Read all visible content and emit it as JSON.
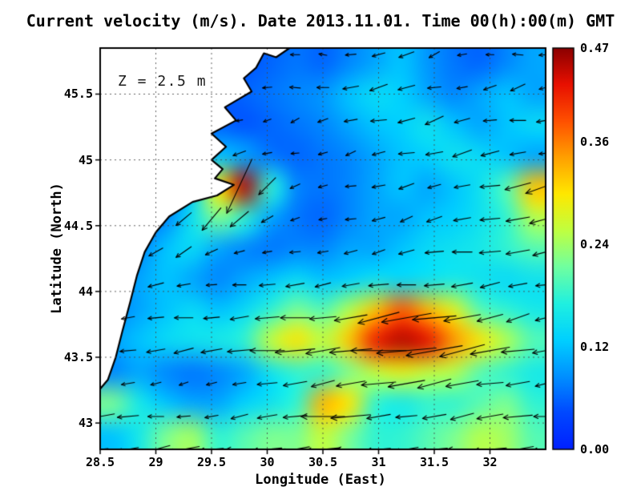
{
  "figure": {
    "title": "Current velocity (m/s). Date 2013.11.01. Time 00(h):00(m) GMT",
    "xlabel": "Longitude (East)",
    "ylabel": "Latitude (North)",
    "annotation": "Z = 2.5 m",
    "date": "2013.11.01",
    "time": "00(h):00(m) GMT",
    "units": "m/s",
    "depth_m": 2.5,
    "background": "#ffffff"
  },
  "chart_data": {
    "type": "heatmap",
    "subtype": "velocity-magnitude-with-quiver-arrows",
    "title": "Current velocity (m/s). Date 2013.11.01. Time 00(h):00(m) GMT",
    "xlabel": "Longitude (East)",
    "ylabel": "Latitude (North)",
    "depth_annotation": "Z = 2.5 m",
    "x_range": [
      28.5,
      32.5
    ],
    "y_range": [
      42.8,
      45.85
    ],
    "x_ticks": [
      28.5,
      29,
      29.5,
      30,
      30.5,
      31,
      31.5,
      32
    ],
    "x_tick_labels": [
      "28.5",
      "29",
      "29.5",
      "30",
      "30.5",
      "31",
      "31.5",
      "32"
    ],
    "y_ticks": [
      43,
      43.5,
      44,
      44.5,
      45,
      45.5
    ],
    "y_tick_labels": [
      "43",
      "43.5",
      "44",
      "44.5",
      "45",
      "45.5"
    ],
    "grid_on": true,
    "land_color": "#ffffff",
    "coast_color": "#000000",
    "arrow_color": "#000000",
    "colorbar": {
      "min": 0.0,
      "max": 0.47,
      "tick_values": [
        0.47,
        0.36,
        0.24,
        0.12,
        0.0
      ],
      "tick_labels": [
        "0.47",
        "0.36",
        "0.24",
        "0.12",
        "0.00"
      ],
      "colormap_stops": [
        "#0020ff",
        "#0048ff",
        "#0090ff",
        "#00d0ff",
        "#20f0e0",
        "#70ffa0",
        "#c0ff40",
        "#ffe800",
        "#ffa000",
        "#ff5000",
        "#e81000",
        "#8b0000"
      ]
    },
    "lon": [
      28.5,
      28.75,
      29.0,
      29.25,
      29.5,
      29.75,
      30.0,
      30.25,
      30.5,
      30.75,
      31.0,
      31.25,
      31.5,
      31.75,
      32.0,
      32.25,
      32.5
    ],
    "lat": [
      45.8,
      45.55,
      45.3,
      45.05,
      44.8,
      44.55,
      44.3,
      44.05,
      43.8,
      43.55,
      43.3,
      43.05,
      42.8
    ],
    "magnitude": [
      [
        0.05,
        0.05,
        0.04,
        0.05,
        0.06,
        0.05,
        0.06,
        0.07,
        0.06,
        0.08,
        0.1,
        0.12,
        0.09,
        0.07,
        0.06,
        0.08,
        0.1
      ],
      [
        0.05,
        0.04,
        0.05,
        0.06,
        0.05,
        0.06,
        0.07,
        0.08,
        0.09,
        0.12,
        0.14,
        0.13,
        0.1,
        0.08,
        0.1,
        0.12,
        0.1
      ],
      [
        0.04,
        0.05,
        0.06,
        0.07,
        0.06,
        0.05,
        0.06,
        0.07,
        0.08,
        0.1,
        0.12,
        0.13,
        0.15,
        0.12,
        0.1,
        0.12,
        0.14
      ],
      [
        0.05,
        0.06,
        0.07,
        0.08,
        0.12,
        0.1,
        0.07,
        0.06,
        0.07,
        0.08,
        0.1,
        0.12,
        0.13,
        0.15,
        0.14,
        0.12,
        0.1
      ],
      [
        0.05,
        0.05,
        0.06,
        0.12,
        0.3,
        0.45,
        0.18,
        0.08,
        0.07,
        0.08,
        0.1,
        0.12,
        0.1,
        0.12,
        0.15,
        0.2,
        0.32
      ],
      [
        0.05,
        0.06,
        0.08,
        0.15,
        0.22,
        0.18,
        0.1,
        0.07,
        0.06,
        0.08,
        0.1,
        0.1,
        0.12,
        0.13,
        0.15,
        0.18,
        0.25
      ],
      [
        0.06,
        0.08,
        0.12,
        0.14,
        0.1,
        0.08,
        0.07,
        0.08,
        0.08,
        0.1,
        0.1,
        0.12,
        0.14,
        0.15,
        0.16,
        0.18,
        0.2
      ],
      [
        0.08,
        0.1,
        0.12,
        0.1,
        0.08,
        0.1,
        0.12,
        0.14,
        0.12,
        0.13,
        0.15,
        0.14,
        0.15,
        0.16,
        0.15,
        0.14,
        0.15
      ],
      [
        0.08,
        0.1,
        0.12,
        0.14,
        0.12,
        0.14,
        0.18,
        0.22,
        0.2,
        0.25,
        0.32,
        0.38,
        0.33,
        0.28,
        0.2,
        0.18,
        0.16
      ],
      [
        0.1,
        0.12,
        0.14,
        0.15,
        0.16,
        0.18,
        0.26,
        0.3,
        0.26,
        0.32,
        0.42,
        0.45,
        0.43,
        0.35,
        0.3,
        0.25,
        0.2
      ],
      [
        0.08,
        0.1,
        0.08,
        0.07,
        0.08,
        0.1,
        0.15,
        0.18,
        0.18,
        0.22,
        0.26,
        0.28,
        0.26,
        0.25,
        0.2,
        0.18,
        0.16
      ],
      [
        0.22,
        0.16,
        0.12,
        0.1,
        0.1,
        0.13,
        0.15,
        0.18,
        0.33,
        0.3,
        0.18,
        0.16,
        0.18,
        0.18,
        0.2,
        0.22,
        0.18
      ],
      [
        0.12,
        0.16,
        0.22,
        0.24,
        0.18,
        0.2,
        0.22,
        0.22,
        0.26,
        0.22,
        0.18,
        0.18,
        0.2,
        0.22,
        0.25,
        0.24,
        0.2
      ]
    ],
    "direction_deg": [
      [
        200,
        190,
        185,
        195,
        205,
        210,
        190,
        180,
        170,
        185,
        195,
        200,
        210,
        190,
        180,
        175,
        185
      ],
      [
        195,
        185,
        190,
        200,
        210,
        195,
        185,
        175,
        180,
        190,
        200,
        195,
        185,
        190,
        200,
        205,
        195
      ],
      [
        190,
        200,
        195,
        185,
        180,
        190,
        200,
        210,
        200,
        190,
        185,
        195,
        205,
        195,
        185,
        180,
        190
      ],
      [
        185,
        190,
        200,
        210,
        220,
        200,
        190,
        185,
        195,
        205,
        195,
        185,
        190,
        200,
        195,
        190,
        185
      ],
      [
        180,
        185,
        190,
        220,
        235,
        245,
        225,
        205,
        195,
        185,
        190,
        200,
        195,
        190,
        185,
        195,
        200
      ],
      [
        185,
        190,
        200,
        220,
        230,
        220,
        210,
        200,
        190,
        185,
        195,
        205,
        200,
        190,
        185,
        190,
        195
      ],
      [
        190,
        195,
        210,
        215,
        205,
        195,
        190,
        185,
        190,
        195,
        200,
        195,
        185,
        180,
        185,
        190,
        195
      ],
      [
        195,
        200,
        195,
        190,
        185,
        180,
        185,
        190,
        195,
        190,
        185,
        180,
        185,
        190,
        195,
        190,
        185
      ],
      [
        195,
        190,
        185,
        180,
        185,
        190,
        185,
        180,
        185,
        190,
        195,
        190,
        185,
        190,
        195,
        200,
        195
      ],
      [
        190,
        185,
        190,
        195,
        190,
        185,
        180,
        185,
        190,
        185,
        180,
        185,
        190,
        195,
        190,
        185,
        190
      ],
      [
        185,
        190,
        195,
        200,
        195,
        190,
        185,
        190,
        195,
        190,
        185,
        190,
        195,
        190,
        185,
        190,
        195
      ],
      [
        190,
        185,
        180,
        185,
        190,
        195,
        190,
        185,
        180,
        185,
        190,
        185,
        190,
        195,
        190,
        185,
        180
      ],
      [
        185,
        190,
        195,
        190,
        185,
        180,
        185,
        190,
        185,
        180,
        185,
        190,
        185,
        180,
        185,
        190,
        185
      ]
    ],
    "coastline": [
      [
        28.5,
        45.85
      ],
      [
        30.2,
        45.85
      ],
      [
        30.08,
        45.78
      ],
      [
        29.97,
        45.81
      ],
      [
        29.9,
        45.7
      ],
      [
        29.79,
        45.62
      ],
      [
        29.86,
        45.52
      ],
      [
        29.62,
        45.4
      ],
      [
        29.72,
        45.3
      ],
      [
        29.5,
        45.2
      ],
      [
        29.63,
        45.1
      ],
      [
        29.5,
        45.0
      ],
      [
        29.6,
        44.93
      ],
      [
        29.53,
        44.86
      ],
      [
        29.7,
        44.81
      ],
      [
        29.55,
        44.73
      ],
      [
        29.33,
        44.68
      ],
      [
        29.12,
        44.57
      ],
      [
        29.0,
        44.45
      ],
      [
        28.9,
        44.3
      ],
      [
        28.83,
        44.12
      ],
      [
        28.77,
        43.92
      ],
      [
        28.7,
        43.7
      ],
      [
        28.64,
        43.5
      ],
      [
        28.57,
        43.33
      ],
      [
        28.5,
        43.26
      ]
    ]
  },
  "axes": {
    "x_tick_labels": [
      "28.5",
      "29",
      "29.5",
      "30",
      "30.5",
      "31",
      "31.5",
      "32"
    ],
    "y_tick_labels": [
      "43",
      "43.5",
      "44",
      "44.5",
      "45",
      "45.5"
    ],
    "colorbar_labels": [
      "0.47",
      "0.36",
      "0.24",
      "0.12",
      "0.00"
    ]
  }
}
